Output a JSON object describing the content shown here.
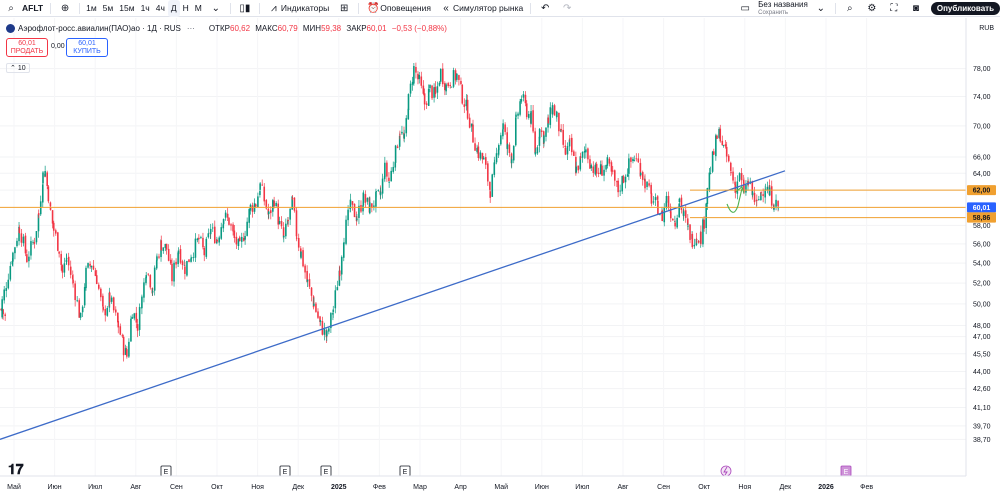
{
  "toolbar": {
    "symbol": "AFLT",
    "intervals": [
      "1м",
      "5м",
      "15м",
      "1ч",
      "4ч",
      "Д",
      "Н",
      "М"
    ],
    "active_interval": "Д",
    "indicators_label": "Индикаторы",
    "alerts_label": "Оповещения",
    "replay_label": "Симулятор рынка",
    "layout_name": "Без названия",
    "layout_status": "Сохранить",
    "publish_label": "Опубликовать"
  },
  "legend": {
    "title": "Аэрофлот-росс.авиалин(ПАО)ао · 1Д · RUS",
    "open_label": "ОТКР",
    "open": "60,62",
    "high_label": "МАКС",
    "high": "60,79",
    "low_label": "МИН",
    "low": "59,38",
    "close_label": "ЗАКР",
    "close": "60,01",
    "change": "−0,53 (−0,88%)"
  },
  "trade": {
    "sell_price": "60,01",
    "sell_label": "ПРОДАТЬ",
    "spread": "0,00",
    "buy_price": "60,01",
    "buy_label": "КУПИТЬ",
    "volume_tag": "10"
  },
  "currency": "RUB",
  "colors": {
    "up": "#089981",
    "down": "#f23645",
    "trendline": "#3d6bc8",
    "level": "#f0a030",
    "current": "#2962ff",
    "arrow": "#4caf50"
  },
  "chart_data": {
    "type": "candlestick",
    "y_scale": "log",
    "ylim": [
      36.8,
      80.8
    ],
    "price_ticks": [
      "78,00",
      "74,00",
      "70,00",
      "66,00",
      "64,00",
      "62,00",
      "58,00",
      "56,00",
      "54,00",
      "52,00",
      "50,00",
      "48,00",
      "47,00",
      "45,50",
      "44,00",
      "42,60",
      "41,10",
      "39,70",
      "38,70"
    ],
    "time_labels": [
      "Май",
      "Июн",
      "Июл",
      "Авг",
      "Сен",
      "Окт",
      "Ноя",
      "Дек",
      "2025",
      "Фев",
      "Мар",
      "Апр",
      "Май",
      "Июн",
      "Июл",
      "Авг",
      "Сен",
      "Окт",
      "Ноя",
      "Дек",
      "2026",
      "Фев"
    ],
    "trendline": {
      "start": [
        "Апр 2024",
        38.7
      ],
      "end": [
        "Сен 2025",
        60.8
      ]
    },
    "levels": [
      {
        "price": 62.0,
        "label": "62,00"
      },
      {
        "price": 58.86,
        "label": "58,86"
      }
    ],
    "current_price": {
      "price": 60.01,
      "label": "60,01",
      "countdown": "60,00"
    },
    "event_markers": [
      "E",
      "E",
      "E",
      "E",
      "E"
    ],
    "price_path": [
      [
        49.5,
        1
      ],
      [
        48.7,
        5
      ],
      [
        50.2,
        2
      ],
      [
        55.0,
        12
      ],
      [
        57.8,
        18
      ],
      [
        54.5,
        25
      ],
      [
        56.5,
        32
      ],
      [
        59.2,
        36
      ],
      [
        63.8,
        40
      ],
      [
        64.2,
        42
      ],
      [
        61.5,
        45
      ],
      [
        59.5,
        47
      ],
      [
        57.5,
        50
      ],
      [
        55.5,
        55
      ],
      [
        53.0,
        58
      ],
      [
        54.5,
        62
      ],
      [
        52.0,
        68
      ],
      [
        48.5,
        75
      ],
      [
        53.0,
        80
      ],
      [
        54.0,
        85
      ],
      [
        52.5,
        90
      ],
      [
        49.0,
        96
      ],
      [
        50.5,
        102
      ],
      [
        48.0,
        110
      ],
      [
        46.0,
        115
      ],
      [
        45.3,
        118
      ],
      [
        49.5,
        123
      ],
      [
        48.0,
        128
      ],
      [
        50.5,
        132
      ],
      [
        53.5,
        136
      ],
      [
        51.5,
        142
      ],
      [
        54.5,
        146
      ],
      [
        56.0,
        150
      ],
      [
        55.5,
        155
      ],
      [
        52.5,
        160
      ],
      [
        55.5,
        166
      ],
      [
        53.5,
        172
      ],
      [
        55.0,
        178
      ],
      [
        56.5,
        185
      ],
      [
        55.0,
        190
      ],
      [
        57.5,
        196
      ],
      [
        56.5,
        202
      ],
      [
        59.0,
        208
      ],
      [
        58.5,
        213
      ],
      [
        56.5,
        218
      ],
      [
        55.5,
        223
      ],
      [
        57.5,
        228
      ],
      [
        60.0,
        233
      ],
      [
        60.5,
        238
      ],
      [
        62.5,
        242
      ],
      [
        59.0,
        250
      ],
      [
        61.0,
        255
      ],
      [
        58.0,
        260
      ],
      [
        56.5,
        264
      ],
      [
        58.5,
        268
      ],
      [
        60.5,
        272
      ],
      [
        57.0,
        276
      ],
      [
        55.0,
        280
      ],
      [
        52.0,
        286
      ],
      [
        50.0,
        292
      ],
      [
        48.0,
        298
      ],
      [
        47.0,
        304
      ],
      [
        49.5,
        310
      ],
      [
        53.5,
        316
      ],
      [
        57.0,
        320
      ],
      [
        60.0,
        326
      ],
      [
        59.0,
        332
      ],
      [
        61.0,
        338
      ],
      [
        60.0,
        344
      ],
      [
        61.0,
        350
      ],
      [
        61.5,
        354
      ],
      [
        64.5,
        358
      ],
      [
        63.0,
        362
      ],
      [
        66.5,
        368
      ],
      [
        69.5,
        372
      ],
      [
        68.0,
        376
      ],
      [
        73.5,
        380
      ],
      [
        78.0,
        385
      ],
      [
        76.0,
        390
      ],
      [
        73.0,
        395
      ],
      [
        75.0,
        400
      ],
      [
        74.0,
        405
      ],
      [
        77.5,
        410
      ],
      [
        75.5,
        415
      ],
      [
        76.5,
        420
      ],
      [
        77.0,
        425
      ],
      [
        74.0,
        430
      ],
      [
        72.0,
        435
      ],
      [
        68.5,
        440
      ],
      [
        66.5,
        445
      ],
      [
        65.5,
        450
      ],
      [
        62.0,
        456
      ],
      [
        64.5,
        460
      ],
      [
        68.0,
        464
      ],
      [
        70.0,
        468
      ],
      [
        67.0,
        472
      ],
      [
        66.0,
        476
      ],
      [
        70.5,
        480
      ],
      [
        74.0,
        485
      ],
      [
        72.0,
        490
      ],
      [
        71.0,
        494
      ],
      [
        66.5,
        498
      ],
      [
        69.5,
        502
      ],
      [
        68.5,
        506
      ],
      [
        70.5,
        510
      ],
      [
        72.5,
        514
      ],
      [
        71.0,
        518
      ],
      [
        68.5,
        522
      ],
      [
        66.5,
        526
      ],
      [
        67.5,
        530
      ],
      [
        64.5,
        536
      ],
      [
        65.5,
        540
      ],
      [
        67.0,
        545
      ],
      [
        65.0,
        550
      ],
      [
        64.0,
        555
      ],
      [
        64.5,
        560
      ],
      [
        65.0,
        565
      ],
      [
        63.5,
        570
      ],
      [
        62.0,
        575
      ],
      [
        63.5,
        580
      ],
      [
        65.0,
        585
      ],
      [
        66.0,
        590
      ],
      [
        64.5,
        596
      ],
      [
        63.0,
        600
      ],
      [
        61.0,
        606
      ],
      [
        60.0,
        612
      ],
      [
        59.0,
        616
      ],
      [
        61.0,
        620
      ],
      [
        59.5,
        624
      ],
      [
        58.5,
        628
      ],
      [
        61.0,
        632
      ],
      [
        59.0,
        636
      ],
      [
        57.5,
        640
      ],
      [
        56.5,
        644
      ],
      [
        57.0,
        648
      ],
      [
        56.8,
        652
      ],
      [
        58.5,
        655
      ],
      [
        62.5,
        658
      ],
      [
        64.5,
        661
      ],
      [
        66.5,
        664
      ],
      [
        68.5,
        667
      ],
      [
        69.0,
        670
      ],
      [
        67.0,
        673
      ],
      [
        66.0,
        676
      ],
      [
        64.0,
        680
      ],
      [
        62.5,
        684
      ],
      [
        63.5,
        688
      ],
      [
        62.0,
        692
      ],
      [
        62.8,
        696
      ],
      [
        61.5,
        700
      ],
      [
        60.2,
        704
      ],
      [
        61.8,
        708
      ],
      [
        62.6,
        712
      ],
      [
        61.5,
        716
      ],
      [
        60.6,
        720
      ],
      [
        60.01,
        724
      ]
    ]
  }
}
